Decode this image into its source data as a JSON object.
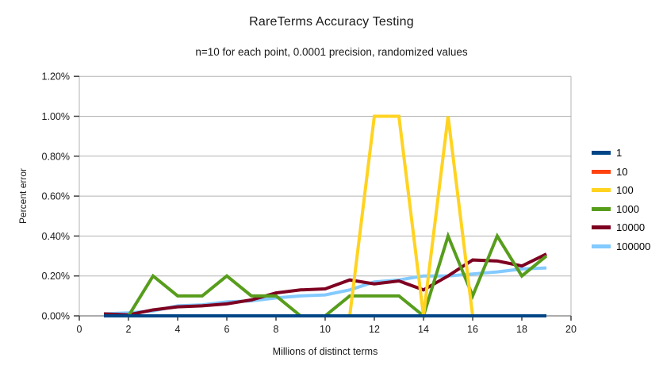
{
  "chart_data": {
    "type": "line",
    "title": "RareTerms Accuracy Testing",
    "subtitle": "n=10 for each point, 0.0001 precision, randomized values",
    "xlabel": "Millions of distinct terms",
    "ylabel": "Percent error",
    "xlim": [
      0,
      20
    ],
    "ylim_percent": [
      0,
      1.2
    ],
    "x_ticks": [
      0,
      2,
      4,
      6,
      8,
      10,
      12,
      14,
      16,
      18,
      20
    ],
    "y_ticks": [
      {
        "label": "0.00%",
        "value": 0.0
      },
      {
        "label": "0.20%",
        "value": 0.2
      },
      {
        "label": "0.40%",
        "value": 0.4
      },
      {
        "label": "0.60%",
        "value": 0.6
      },
      {
        "label": "0.80%",
        "value": 0.8
      },
      {
        "label": "1.00%",
        "value": 1.0
      },
      {
        "label": "1.20%",
        "value": 1.2
      }
    ],
    "grid": "horizontal-only",
    "legend_position": "right",
    "x": [
      1,
      2,
      3,
      4,
      5,
      6,
      7,
      8,
      9,
      10,
      11,
      12,
      13,
      14,
      15,
      16,
      17,
      18,
      19
    ],
    "series": [
      {
        "name": "1",
        "color": "#004586",
        "values": [
          0,
          0,
          0,
          0,
          0,
          0,
          0,
          0,
          0,
          0,
          0,
          0,
          0,
          0,
          0,
          0,
          0,
          0,
          0
        ]
      },
      {
        "name": "10",
        "color": "#ff420e",
        "values": [
          0,
          0,
          0,
          0,
          0,
          0,
          0,
          0,
          0,
          0,
          0,
          0,
          0,
          0,
          0,
          0,
          0,
          0,
          0
        ]
      },
      {
        "name": "100",
        "color": "#ffd320",
        "values": [
          0,
          0,
          0,
          0,
          0,
          0,
          0,
          0,
          0,
          0,
          0,
          1.0,
          1.0,
          0,
          1.0,
          0,
          0,
          0,
          0
        ]
      },
      {
        "name": "1000",
        "color": "#579d1c",
        "values": [
          0,
          0,
          0.2,
          0.1,
          0.1,
          0.2,
          0.1,
          0.1,
          0,
          0,
          0.1,
          0.1,
          0.1,
          0,
          0.4,
          0.1,
          0.4,
          0.2,
          0.3
        ]
      },
      {
        "name": "10000",
        "color": "#7e0021",
        "values": [
          0.01,
          0.005,
          0.03,
          0.045,
          0.05,
          0.06,
          0.08,
          0.115,
          0.13,
          0.135,
          0.18,
          0.16,
          0.175,
          0.13,
          0.2,
          0.28,
          0.275,
          0.25,
          0.31
        ]
      },
      {
        "name": "100000",
        "color": "#83caff",
        "values": [
          0.01,
          0.015,
          0.025,
          0.05,
          0.055,
          0.07,
          0.075,
          0.09,
          0.1,
          0.105,
          0.13,
          0.17,
          0.18,
          0.2,
          0.2,
          0.21,
          0.22,
          0.235,
          0.24
        ]
      }
    ]
  }
}
